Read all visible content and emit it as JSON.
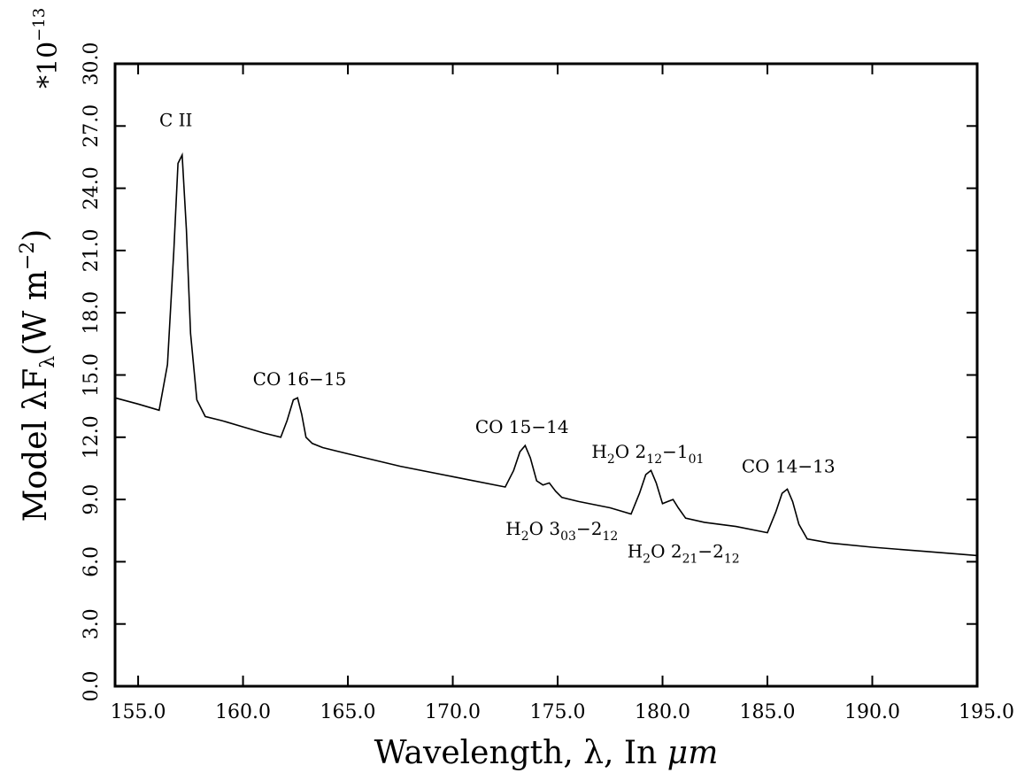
{
  "chart_data": {
    "type": "line",
    "xlabel_parts": [
      "Wavelength, ",
      "λ",
      ", In ",
      "μm"
    ],
    "ylabel_parts": [
      "Model ",
      "λF",
      "λ",
      "(W m",
      "−2",
      ")"
    ],
    "y_multiplier": "*10",
    "y_multiplier_exponent": "−13",
    "xlim": [
      153.9,
      195.0
    ],
    "ylim": [
      0.0,
      30.0
    ],
    "x_ticks": [
      155.0,
      160.0,
      165.0,
      170.0,
      175.0,
      180.0,
      185.0,
      190.0,
      195.0
    ],
    "x_tick_labels": [
      "155.0",
      "160.0",
      "165.0",
      "170.0",
      "175.0",
      "180.0",
      "185.0",
      "190.0",
      "195.0"
    ],
    "y_ticks": [
      0.0,
      3.0,
      6.0,
      9.0,
      12.0,
      15.0,
      18.0,
      21.0,
      24.0,
      27.0,
      30.0
    ],
    "y_tick_labels": [
      "0.0",
      "3.0",
      "6.0",
      "9.0",
      "12.0",
      "15.0",
      "18.0",
      "21.0",
      "24.0",
      "27.0",
      "30.0"
    ],
    "grid": false,
    "series": [
      {
        "x": [
          153.9,
          155.0,
          156.0,
          156.4,
          156.7,
          156.9,
          157.1,
          157.3,
          157.5,
          157.8,
          158.2,
          159.0,
          160.0,
          161.0,
          161.8,
          162.1,
          162.4,
          162.6,
          162.8,
          163.0,
          163.3,
          163.8,
          165.0,
          167.5,
          170.0,
          172.5,
          172.9,
          173.2,
          173.45,
          173.7,
          174.0,
          174.3,
          174.6,
          174.9,
          175.2,
          176.0,
          177.5,
          178.5,
          178.9,
          179.2,
          179.45,
          179.7,
          180.0,
          180.25,
          180.5,
          180.75,
          181.1,
          182.0,
          183.5,
          185.0,
          185.4,
          185.7,
          185.95,
          186.2,
          186.5,
          186.9,
          188.0,
          190.0,
          192.5,
          195.0
        ],
        "y": [
          13.9,
          13.6,
          13.3,
          15.5,
          21.0,
          25.2,
          25.6,
          22.0,
          17.0,
          13.8,
          13.0,
          12.8,
          12.5,
          12.2,
          12.0,
          12.8,
          13.8,
          13.9,
          13.1,
          12.0,
          11.7,
          11.5,
          11.2,
          10.6,
          10.1,
          9.6,
          10.4,
          11.3,
          11.6,
          11.0,
          9.9,
          9.7,
          9.8,
          9.4,
          9.1,
          8.9,
          8.6,
          8.3,
          9.3,
          10.2,
          10.4,
          9.8,
          8.8,
          8.9,
          9.0,
          8.6,
          8.1,
          7.9,
          7.7,
          7.4,
          8.4,
          9.3,
          9.5,
          8.9,
          7.8,
          7.1,
          6.9,
          6.7,
          6.5,
          6.3
        ]
      }
    ],
    "annotations": [
      {
        "parts": [
          [
            "C II",
            ""
          ]
        ],
        "x": 156.8,
        "y": 27.0
      },
      {
        "parts": [
          [
            "CO 16−15",
            ""
          ]
        ],
        "x": 162.7,
        "y": 14.5
      },
      {
        "parts": [
          [
            "CO 15−14",
            ""
          ]
        ],
        "x": 173.3,
        "y": 12.2
      },
      {
        "parts": [
          [
            "H",
            ""
          ],
          [
            "2",
            "sub"
          ],
          [
            "O 2",
            ""
          ],
          [
            "12",
            "sub"
          ],
          [
            "−1",
            ""
          ],
          [
            "01",
            "sub"
          ]
        ],
        "x": 179.3,
        "y": 11.0
      },
      {
        "parts": [
          [
            "CO 14−13",
            ""
          ]
        ],
        "x": 186.0,
        "y": 10.3
      },
      {
        "parts": [
          [
            "H",
            ""
          ],
          [
            "2",
            "sub"
          ],
          [
            "O 3",
            ""
          ],
          [
            "03",
            "sub"
          ],
          [
            "−2",
            ""
          ],
          [
            "12",
            "sub"
          ]
        ],
        "x": 175.2,
        "y": 7.3
      },
      {
        "parts": [
          [
            "H",
            ""
          ],
          [
            "2",
            "sub"
          ],
          [
            "O 2",
            ""
          ],
          [
            "21",
            "sub"
          ],
          [
            "−2",
            ""
          ],
          [
            "12",
            "sub"
          ]
        ],
        "x": 181.0,
        "y": 6.2
      }
    ]
  }
}
